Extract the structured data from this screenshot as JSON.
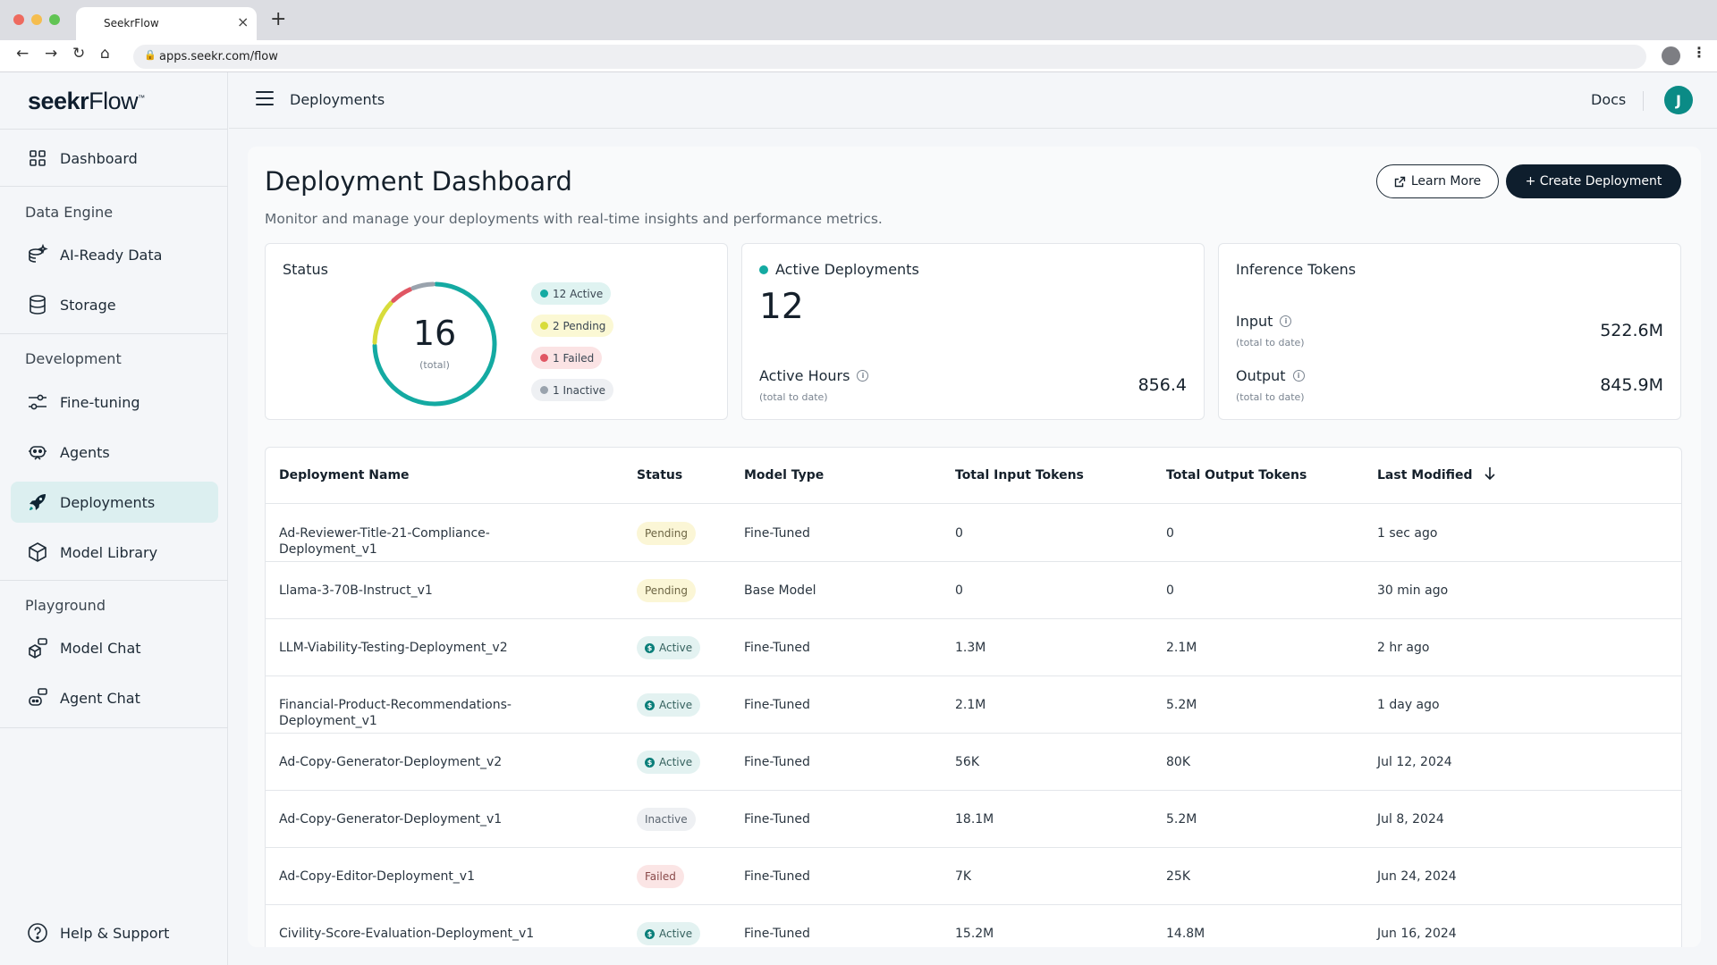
{
  "browser": {
    "tab_title": "SeekrFlow",
    "url": "apps.seekr.com/flow",
    "traffic_colors": [
      "#ee6a5f",
      "#f5bd4f",
      "#61c454"
    ]
  },
  "sidebar": {
    "logo_bold": "seekr",
    "logo_light": "Flow",
    "items": [
      {
        "label": "Dashboard",
        "icon": "grid-icon"
      },
      {
        "label": "AI-Ready Data",
        "icon": "data-sparkle-icon"
      },
      {
        "label": "Storage",
        "icon": "database-icon"
      },
      {
        "label": "Fine-tuning",
        "icon": "sliders-icon"
      },
      {
        "label": "Agents",
        "icon": "robot-icon"
      },
      {
        "label": "Deployments",
        "icon": "rocket-icon"
      },
      {
        "label": "Model Library",
        "icon": "cube-icon"
      },
      {
        "label": "Model Chat",
        "icon": "cube-chat-icon"
      },
      {
        "label": "Agent Chat",
        "icon": "robot-chat-icon"
      }
    ],
    "sections": [
      "Data Engine",
      "Development",
      "Playground"
    ],
    "help_label": "Help & Support",
    "active_item": "Deployments",
    "accent": "#0b8b86"
  },
  "topbar": {
    "page_label": "Deployments",
    "docs_label": "Docs",
    "avatar_initial": "J"
  },
  "main": {
    "title": "Deployment Dashboard",
    "subtitle": "Monitor and manage your deployments with real-time insights and performance metrics.",
    "learn_more_label": "Learn More",
    "create_label": "+ Create Deployment"
  },
  "status_card": {
    "label": "Status",
    "total": "16",
    "total_sub": "(total)",
    "pills": [
      {
        "label": "12 Active",
        "count": 12,
        "color": "#14aaa2",
        "bg": "#dff3f1"
      },
      {
        "label": "2 Pending",
        "count": 2,
        "color": "#d8dc3b",
        "bg": "#fbf8d4"
      },
      {
        "label": "1 Failed",
        "count": 1,
        "color": "#e05663",
        "bg": "#fbe3e4"
      },
      {
        "label": "1 Inactive",
        "count": 1,
        "color": "#9aa3ad",
        "bg": "#eef0f3"
      }
    ]
  },
  "active_card": {
    "label": "Active Deployments",
    "value": "12",
    "hours_label": "Active Hours",
    "hours_sub": "(total to date)",
    "hours_value": "856.4",
    "dot_color": "#14aaa2"
  },
  "tokens_card": {
    "label": "Inference Tokens",
    "input_label": "Input",
    "input_sub": "(total to date)",
    "input_value": "522.6M",
    "output_label": "Output",
    "output_sub": "(total to date)",
    "output_value": "845.9M"
  },
  "table": {
    "headers": [
      "Deployment Name",
      "Status",
      "Model Type",
      "Total Input Tokens",
      "Total Output Tokens",
      "Last Modified"
    ],
    "sort_icon": "arrow-down-icon",
    "rows": [
      {
        "name": "Ad-Reviewer-Title-21-Compliance-Deployment_v1",
        "status": "Pending",
        "type": "Fine-Tuned",
        "input": "0",
        "output": "0",
        "modified": "1 sec ago"
      },
      {
        "name": "Llama-3-70B-Instruct_v1",
        "status": "Pending",
        "type": "Base Model",
        "input": "0",
        "output": "0",
        "modified": "30 min ago"
      },
      {
        "name": "LLM-Viability-Testing-Deployment_v2",
        "status": "Active",
        "type": "Fine-Tuned",
        "input": "1.3M",
        "output": "2.1M",
        "modified": "2 hr ago"
      },
      {
        "name": "Financial-Product-Recommendations-Deployment_v1",
        "status": "Active",
        "type": "Fine-Tuned",
        "input": "2.1M",
        "output": "5.2M",
        "modified": "1 day ago"
      },
      {
        "name": "Ad-Copy-Generator-Deployment_v2",
        "status": "Active",
        "type": "Fine-Tuned",
        "input": "56K",
        "output": "80K",
        "modified": "Jul 12, 2024"
      },
      {
        "name": "Ad-Copy-Generator-Deployment_v1",
        "status": "Inactive",
        "type": "Fine-Tuned",
        "input": "18.1M",
        "output": "5.2M",
        "modified": "Jul 8, 2024"
      },
      {
        "name": "Ad-Copy-Editor-Deployment_v1",
        "status": "Failed",
        "type": "Fine-Tuned",
        "input": "7K",
        "output": "25K",
        "modified": "Jun 24, 2024"
      },
      {
        "name": "Civility-Score-Evaluation-Deployment_v1",
        "status": "Active",
        "type": "Fine-Tuned",
        "input": "15.2M",
        "output": "14.8M",
        "modified": "Jun 16, 2024"
      }
    ]
  }
}
